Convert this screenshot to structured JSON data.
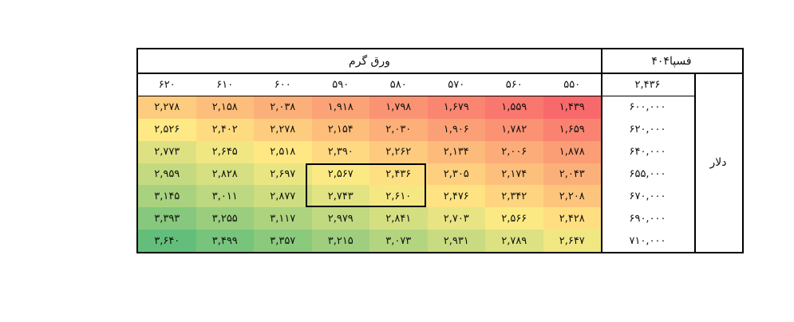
{
  "header": {
    "row_title": "ورق گرم",
    "col_title": "فسپا۴۰۴",
    "corner_value": "۲,۴۳۶",
    "side_label": "دلار"
  },
  "chart_data": {
    "type": "heatmap",
    "title": "",
    "x_title": "ورق گرم",
    "y_title": "دلار",
    "x_categories": [
      "۶۲۰",
      "۶۱۰",
      "۶۰۰",
      "۵۹۰",
      "۵۸۰",
      "۵۷۰",
      "۵۶۰",
      "۵۵۰"
    ],
    "y_categories": [
      "۶۰۰,۰۰۰",
      "۶۲۰,۰۰۰",
      "۶۴۰,۰۰۰",
      "۶۵۵,۰۰۰",
      "۶۷۰,۰۰۰",
      "۶۹۰,۰۰۰",
      "۷۱۰,۰۰۰"
    ],
    "values": [
      [
        2278,
        2158,
        2038,
        1918,
        1798,
        1679,
        1559,
        1439
      ],
      [
        2526,
        2402,
        2278,
        2154,
        2030,
        1906,
        1782,
        1659
      ],
      [
        2773,
        2645,
        2518,
        2390,
        2262,
        2134,
        2006,
        1878
      ],
      [
        2959,
        2828,
        2697,
        2567,
        2436,
        2305,
        2174,
        2043
      ],
      [
        3145,
        3011,
        2877,
        2743,
        2610,
        2476,
        2342,
        2208
      ],
      [
        3393,
        3255,
        3117,
        2979,
        2841,
        2703,
        2566,
        2428
      ],
      [
        3640,
        3499,
        3357,
        3215,
        3073,
        2931,
        2789,
        2647
      ]
    ],
    "labels": [
      [
        "۲,۲۷۸",
        "۲,۱۵۸",
        "۲,۰۳۸",
        "۱,۹۱۸",
        "۱,۷۹۸",
        "۱,۶۷۹",
        "۱,۵۵۹",
        "۱,۴۳۹"
      ],
      [
        "۲,۵۲۶",
        "۲,۴۰۲",
        "۲,۲۷۸",
        "۲,۱۵۴",
        "۲,۰۳۰",
        "۱,۹۰۶",
        "۱,۷۸۲",
        "۱,۶۵۹"
      ],
      [
        "۲,۷۷۳",
        "۲,۶۴۵",
        "۲,۵۱۸",
        "۲,۳۹۰",
        "۲,۲۶۲",
        "۲,۱۳۴",
        "۲,۰۰۶",
        "۱,۸۷۸"
      ],
      [
        "۲,۹۵۹",
        "۲,۸۲۸",
        "۲,۶۹۷",
        "۲,۵۶۷",
        "۲,۴۳۶",
        "۲,۳۰۵",
        "۲,۱۷۴",
        "۲,۰۴۳"
      ],
      [
        "۳,۱۴۵",
        "۳,۰۱۱",
        "۲,۸۷۷",
        "۲,۷۴۳",
        "۲,۶۱۰",
        "۲,۴۷۶",
        "۲,۳۴۲",
        "۲,۲۰۸"
      ],
      [
        "۳,۳۹۳",
        "۳,۲۵۵",
        "۳,۱۱۷",
        "۲,۹۷۹",
        "۲,۸۴۱",
        "۲,۷۰۳",
        "۲,۵۶۶",
        "۲,۴۲۸"
      ],
      [
        "۳,۶۴۰",
        "۳,۴۹۹",
        "۳,۳۵۷",
        "۳,۲۱۵",
        "۳,۰۷۳",
        "۲,۹۳۱",
        "۲,۷۸۹",
        "۲,۶۴۷"
      ]
    ],
    "color_scale": {
      "low": "#f8696b",
      "mid": "#ffeb84",
      "high": "#63be7b"
    },
    "highlight": {
      "rows": [
        3,
        4
      ],
      "cols": [
        3,
        4
      ]
    }
  }
}
